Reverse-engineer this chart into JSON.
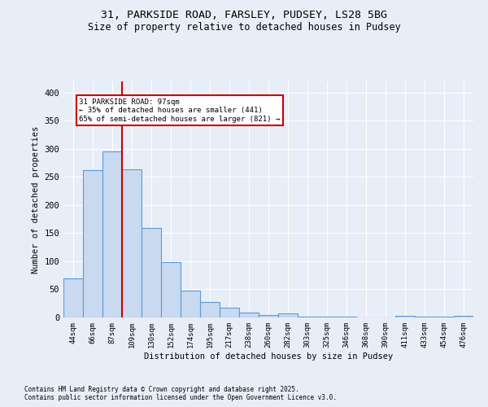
{
  "title1": "31, PARKSIDE ROAD, FARSLEY, PUDSEY, LS28 5BG",
  "title2": "Size of property relative to detached houses in Pudsey",
  "xlabel": "Distribution of detached houses by size in Pudsey",
  "ylabel": "Number of detached properties",
  "categories": [
    "44sqm",
    "66sqm",
    "87sqm",
    "109sqm",
    "130sqm",
    "152sqm",
    "174sqm",
    "195sqm",
    "217sqm",
    "238sqm",
    "260sqm",
    "282sqm",
    "303sqm",
    "325sqm",
    "346sqm",
    "368sqm",
    "390sqm",
    "411sqm",
    "433sqm",
    "454sqm",
    "476sqm"
  ],
  "values": [
    70,
    262,
    295,
    263,
    160,
    99,
    48,
    27,
    17,
    9,
    5,
    7,
    2,
    1,
    1,
    0,
    0,
    3,
    2,
    2,
    3
  ],
  "bar_color": "#c8d9f0",
  "bar_edge_color": "#5b9bd5",
  "vline_x_idx": 2,
  "vline_color": "#cc0000",
  "annotation_text": "31 PARKSIDE ROAD: 97sqm\n← 35% of detached houses are smaller (441)\n65% of semi-detached houses are larger (821) →",
  "annotation_box_color": "#ffffff",
  "annotation_box_edge": "#cc0000",
  "ylim": [
    0,
    420
  ],
  "yticks": [
    0,
    50,
    100,
    150,
    200,
    250,
    300,
    350,
    400
  ],
  "background_color": "#e8eef8",
  "footer1": "Contains HM Land Registry data © Crown copyright and database right 2025.",
  "footer2": "Contains public sector information licensed under the Open Government Licence v3.0."
}
